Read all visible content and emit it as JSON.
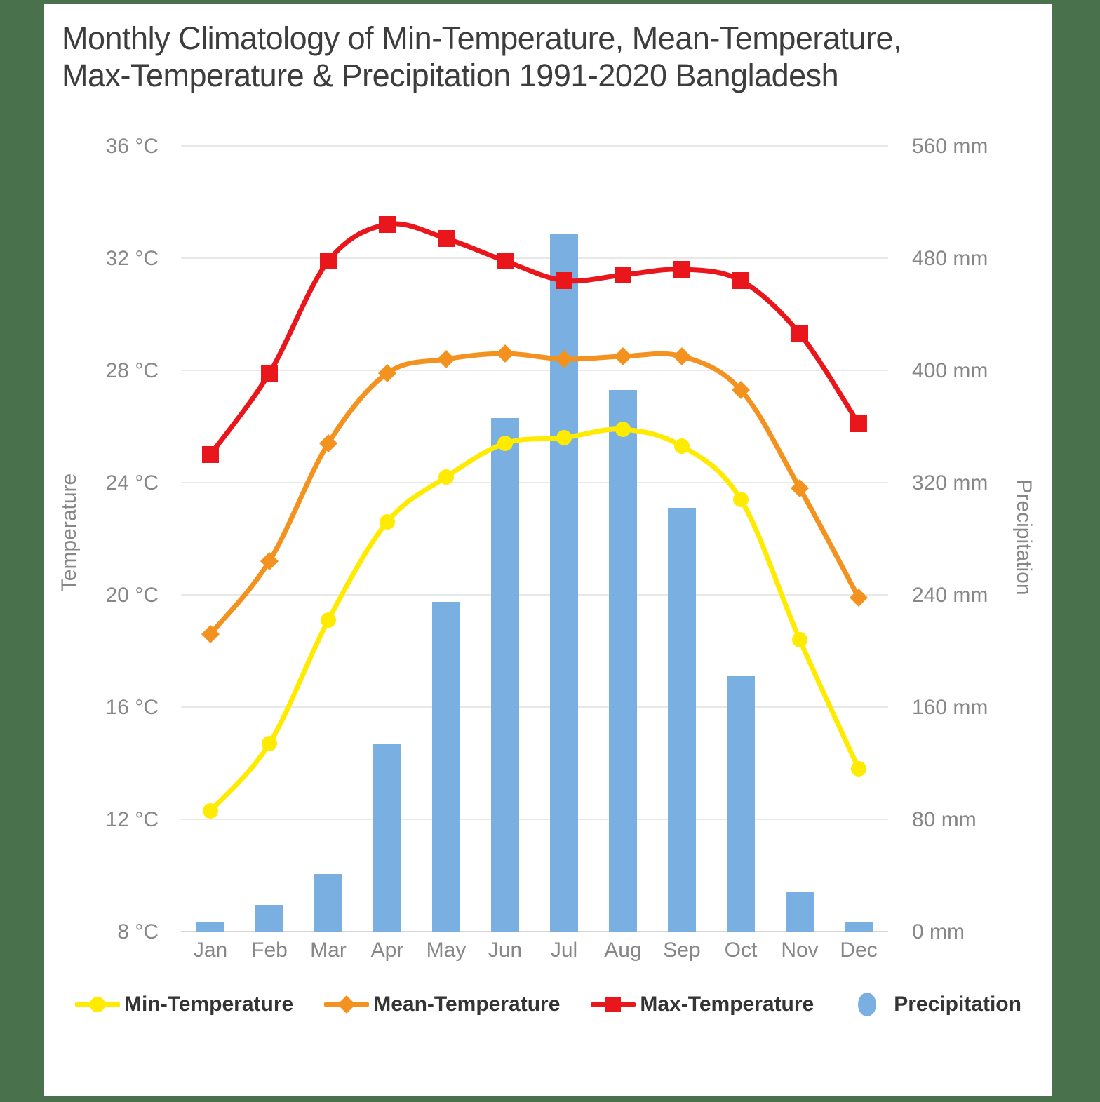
{
  "page": {
    "background_color": "#48714C",
    "card_background": "#FFFFFF"
  },
  "title": "Monthly Climatology of Min-Temperature, Mean-Temperature, Max-Temperature & Precipitation 1991-2020 Bangladesh",
  "axes": {
    "left": {
      "title": "Temperature",
      "tick_labels": [
        "36 °C",
        "32 °C",
        "28 °C",
        "24 °C",
        "20 °C",
        "16 °C",
        "12 °C",
        "8 °C"
      ]
    },
    "right": {
      "title": "Precipitation",
      "tick_labels": [
        "560 mm",
        "480 mm",
        "400 mm",
        "320 mm",
        "240 mm",
        "160 mm",
        "80 mm",
        "0 mm"
      ]
    },
    "bottom": {
      "tick_labels": [
        "Jan",
        "Feb",
        "Mar",
        "Apr",
        "May",
        "Jun",
        "Jul",
        "Aug",
        "Sep",
        "Oct",
        "Nov",
        "Dec"
      ]
    }
  },
  "legend": {
    "items": [
      {
        "label": "Min-Temperature",
        "marker": "circle",
        "color": "#FFEB00"
      },
      {
        "label": "Mean-Temperature",
        "marker": "diamond",
        "color": "#F3921E"
      },
      {
        "label": "Max-Temperature",
        "marker": "square",
        "color": "#E9161C"
      },
      {
        "label": "Precipitation",
        "marker": "bar",
        "color": "#79AFE1"
      }
    ]
  },
  "chart_data": {
    "type": "combo (bar + line)",
    "title": "Monthly Climatology of Min-Temperature, Mean-Temperature, Max-Temperature & Precipitation 1991-2020 Bangladesh",
    "categories": [
      "Jan",
      "Feb",
      "Mar",
      "Apr",
      "May",
      "Jun",
      "Jul",
      "Aug",
      "Sep",
      "Oct",
      "Nov",
      "Dec"
    ],
    "series": [
      {
        "name": "Min-Temperature",
        "chart": "line",
        "marker": "circle",
        "color": "#FFEB00",
        "y_axis": "left",
        "values": [
          12.3,
          14.7,
          19.1,
          22.6,
          24.2,
          25.4,
          25.6,
          25.9,
          25.3,
          23.4,
          18.4,
          13.8
        ]
      },
      {
        "name": "Mean-Temperature",
        "chart": "line",
        "marker": "diamond",
        "color": "#F3921E",
        "y_axis": "left",
        "values": [
          18.6,
          21.2,
          25.4,
          27.9,
          28.4,
          28.6,
          28.4,
          28.5,
          28.5,
          27.3,
          23.8,
          19.9
        ]
      },
      {
        "name": "Max-Temperature",
        "chart": "line",
        "marker": "square",
        "color": "#E9161C",
        "y_axis": "left",
        "values": [
          25.0,
          27.9,
          31.9,
          33.2,
          32.7,
          31.9,
          31.2,
          31.4,
          31.6,
          31.2,
          29.3,
          26.1
        ]
      },
      {
        "name": "Precipitation",
        "chart": "bar",
        "marker": "bar",
        "color": "#79AFE1",
        "y_axis": "right",
        "values": [
          7,
          19,
          41,
          134,
          235,
          366,
          497,
          386,
          302,
          182,
          28,
          7
        ]
      }
    ],
    "y_left": {
      "label": "Temperature",
      "unit": "°C",
      "min": 8,
      "max": 36,
      "ticks": [
        36,
        32,
        28,
        24,
        20,
        16,
        12,
        8
      ]
    },
    "y_right": {
      "label": "Precipitation",
      "unit": "mm",
      "min": 0,
      "max": 560,
      "ticks": [
        560,
        480,
        400,
        320,
        240,
        160,
        80,
        0
      ]
    },
    "grid": true,
    "legend_position": "bottom",
    "style": {
      "grid_color": "#E8E8E8",
      "axis_line_color": "#D5D5D5",
      "tick_text_color": "#878787",
      "axis_title_color": "#878787",
      "title_color": "#3D3D3D"
    }
  }
}
